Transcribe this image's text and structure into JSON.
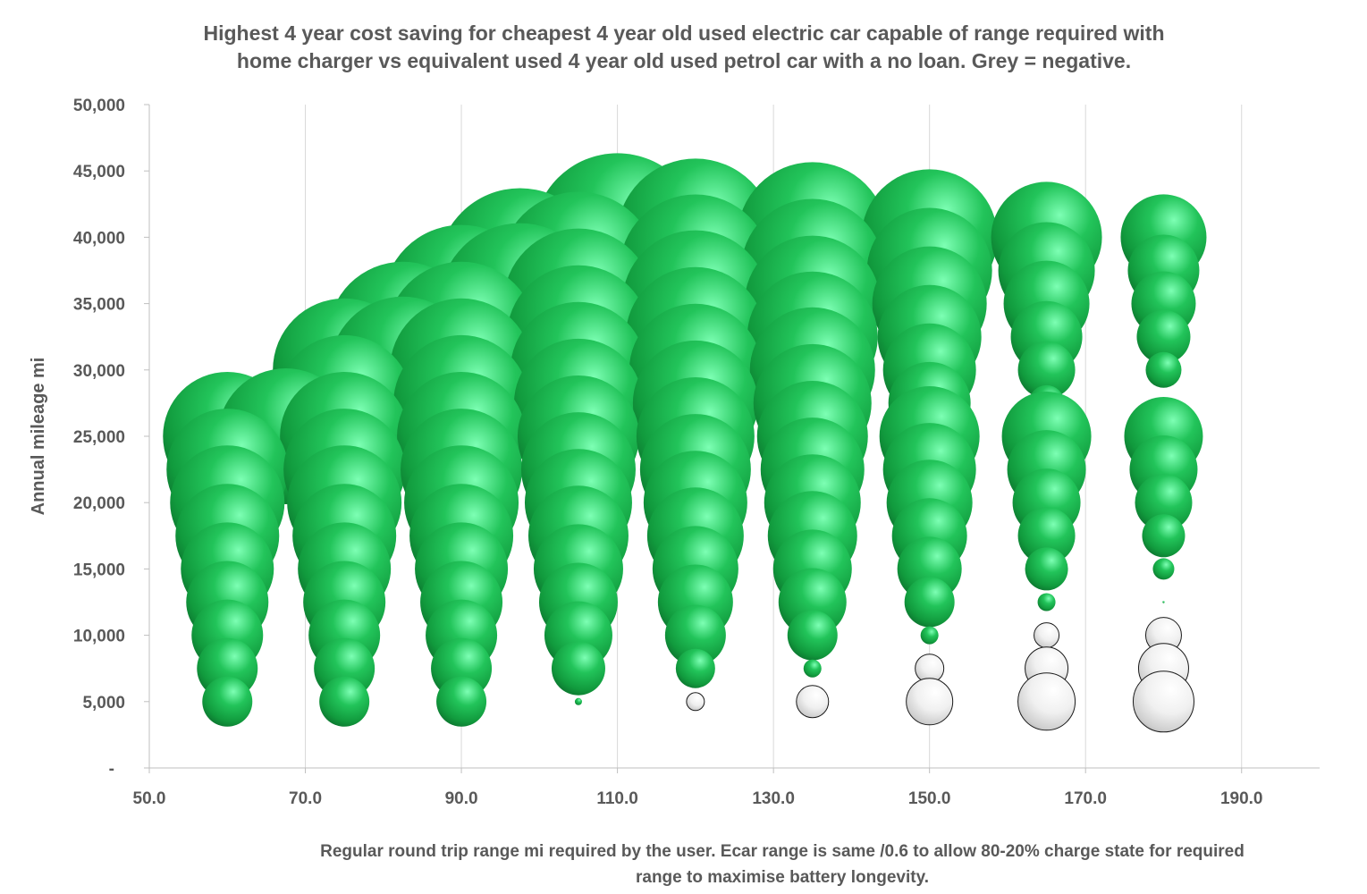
{
  "chart_data": {
    "type": "bubble",
    "title_line1": "Highest 4 year cost saving for cheapest 4 year old used electric car capable of range required with",
    "title_line2": "home charger vs equivalent used 4 year old used petrol car with a no loan. Grey = negative.",
    "xlabel_line1": "Regular round trip range mi required by the user.  Ecar range is same /0.6 to allow 80-20% charge state for required",
    "xlabel_line2": "range to maximise battery longevity.",
    "ylabel": "Annual mileage mi",
    "xlim": [
      50,
      200
    ],
    "ylim": [
      0,
      50000
    ],
    "x_ticks": [
      "50.0",
      "70.0",
      "90.0",
      "110.0",
      "130.0",
      "150.0",
      "170.0",
      "190.0"
    ],
    "y_ticks": [
      "-",
      "5,000",
      "10,000",
      "15,000",
      "20,000",
      "25,000",
      "30,000",
      "35,000",
      "40,000",
      "45,000",
      "50,000"
    ],
    "gridlines": "vertical",
    "colors": {
      "positive": "#1ea84a",
      "negative": "#e8e8e8",
      "text": "#595959",
      "grid": "#d9d9d9"
    },
    "series": [
      {
        "x": 60,
        "points": [
          {
            "y": 5000,
            "size": 28,
            "sign": "pos"
          },
          {
            "y": 7500,
            "size": 34,
            "sign": "pos"
          },
          {
            "y": 10000,
            "size": 40,
            "sign": "pos"
          },
          {
            "y": 12500,
            "size": 46,
            "sign": "pos"
          },
          {
            "y": 15000,
            "size": 52,
            "sign": "pos"
          },
          {
            "y": 17500,
            "size": 58,
            "sign": "pos"
          },
          {
            "y": 20000,
            "size": 64,
            "sign": "pos"
          },
          {
            "y": 22500,
            "size": 68,
            "sign": "pos"
          },
          {
            "y": 25000,
            "size": 72,
            "sign": "pos"
          }
        ]
      },
      {
        "x": 67.5,
        "points": [
          {
            "y": 25000,
            "size": 76,
            "sign": "pos"
          }
        ]
      },
      {
        "x": 75,
        "points": [
          {
            "y": 5000,
            "size": 28,
            "sign": "pos"
          },
          {
            "y": 7500,
            "size": 34,
            "sign": "pos"
          },
          {
            "y": 10000,
            "size": 40,
            "sign": "pos"
          },
          {
            "y": 12500,
            "size": 46,
            "sign": "pos"
          },
          {
            "y": 15000,
            "size": 52,
            "sign": "pos"
          },
          {
            "y": 17500,
            "size": 58,
            "sign": "pos"
          },
          {
            "y": 20000,
            "size": 64,
            "sign": "pos"
          },
          {
            "y": 22500,
            "size": 68,
            "sign": "pos"
          },
          {
            "y": 25000,
            "size": 72,
            "sign": "pos"
          },
          {
            "y": 27500,
            "size": 76,
            "sign": "pos"
          },
          {
            "y": 30000,
            "size": 80,
            "sign": "pos"
          }
        ]
      },
      {
        "x": 82.5,
        "points": [
          {
            "y": 30000,
            "size": 82,
            "sign": "pos"
          },
          {
            "y": 32500,
            "size": 84,
            "sign": "pos"
          }
        ]
      },
      {
        "x": 90,
        "points": [
          {
            "y": 5000,
            "size": 28,
            "sign": "pos"
          },
          {
            "y": 7500,
            "size": 34,
            "sign": "pos"
          },
          {
            "y": 10000,
            "size": 40,
            "sign": "pos"
          },
          {
            "y": 12500,
            "size": 46,
            "sign": "pos"
          },
          {
            "y": 15000,
            "size": 52,
            "sign": "pos"
          },
          {
            "y": 17500,
            "size": 58,
            "sign": "pos"
          },
          {
            "y": 20000,
            "size": 64,
            "sign": "pos"
          },
          {
            "y": 22500,
            "size": 68,
            "sign": "pos"
          },
          {
            "y": 25000,
            "size": 72,
            "sign": "pos"
          },
          {
            "y": 27500,
            "size": 76,
            "sign": "pos"
          },
          {
            "y": 30000,
            "size": 80,
            "sign": "pos"
          },
          {
            "y": 32500,
            "size": 84,
            "sign": "pos"
          },
          {
            "y": 35000,
            "size": 88,
            "sign": "pos"
          }
        ]
      },
      {
        "x": 97.5,
        "points": [
          {
            "y": 35000,
            "size": 90,
            "sign": "pos"
          },
          {
            "y": 37500,
            "size": 92,
            "sign": "pos"
          }
        ]
      },
      {
        "x": 105,
        "points": [
          {
            "y": 5000,
            "size": 4,
            "sign": "pos"
          },
          {
            "y": 7500,
            "size": 30,
            "sign": "pos"
          },
          {
            "y": 10000,
            "size": 38,
            "sign": "pos"
          },
          {
            "y": 12500,
            "size": 44,
            "sign": "pos"
          },
          {
            "y": 15000,
            "size": 50,
            "sign": "pos"
          },
          {
            "y": 17500,
            "size": 56,
            "sign": "pos"
          },
          {
            "y": 20000,
            "size": 60,
            "sign": "pos"
          },
          {
            "y": 22500,
            "size": 64,
            "sign": "pos"
          },
          {
            "y": 25000,
            "size": 68,
            "sign": "pos"
          },
          {
            "y": 27500,
            "size": 72,
            "sign": "pos"
          },
          {
            "y": 30000,
            "size": 76,
            "sign": "pos"
          },
          {
            "y": 32500,
            "size": 80,
            "sign": "pos"
          },
          {
            "y": 35000,
            "size": 84,
            "sign": "pos"
          },
          {
            "y": 37500,
            "size": 88,
            "sign": "pos"
          }
        ]
      },
      {
        "x": 110,
        "points": [
          {
            "y": 40000,
            "size": 94,
            "sign": "pos"
          }
        ]
      },
      {
        "x": 120,
        "points": [
          {
            "y": 5000,
            "size": 10,
            "sign": "neg"
          },
          {
            "y": 7500,
            "size": 22,
            "sign": "pos"
          },
          {
            "y": 10000,
            "size": 34,
            "sign": "pos"
          },
          {
            "y": 12500,
            "size": 42,
            "sign": "pos"
          },
          {
            "y": 15000,
            "size": 48,
            "sign": "pos"
          },
          {
            "y": 17500,
            "size": 54,
            "sign": "pos"
          },
          {
            "y": 20000,
            "size": 58,
            "sign": "pos"
          },
          {
            "y": 22500,
            "size": 62,
            "sign": "pos"
          },
          {
            "y": 25000,
            "size": 66,
            "sign": "pos"
          },
          {
            "y": 27500,
            "size": 70,
            "sign": "pos"
          },
          {
            "y": 30000,
            "size": 74,
            "sign": "pos"
          },
          {
            "y": 32500,
            "size": 78,
            "sign": "pos"
          },
          {
            "y": 35000,
            "size": 82,
            "sign": "pos"
          },
          {
            "y": 37500,
            "size": 85,
            "sign": "pos"
          },
          {
            "y": 40000,
            "size": 88,
            "sign": "pos"
          }
        ]
      },
      {
        "x": 135,
        "points": [
          {
            "y": 5000,
            "size": 18,
            "sign": "neg"
          },
          {
            "y": 7500,
            "size": 10,
            "sign": "pos"
          },
          {
            "y": 10000,
            "size": 28,
            "sign": "pos"
          },
          {
            "y": 12500,
            "size": 38,
            "sign": "pos"
          },
          {
            "y": 15000,
            "size": 44,
            "sign": "pos"
          },
          {
            "y": 17500,
            "size": 50,
            "sign": "pos"
          },
          {
            "y": 20000,
            "size": 54,
            "sign": "pos"
          },
          {
            "y": 22500,
            "size": 58,
            "sign": "pos"
          },
          {
            "y": 25000,
            "size": 62,
            "sign": "pos"
          },
          {
            "y": 27500,
            "size": 66,
            "sign": "pos"
          },
          {
            "y": 30000,
            "size": 70,
            "sign": "pos"
          },
          {
            "y": 32500,
            "size": 73,
            "sign": "pos"
          },
          {
            "y": 35000,
            "size": 76,
            "sign": "pos"
          },
          {
            "y": 37500,
            "size": 80,
            "sign": "pos"
          },
          {
            "y": 40000,
            "size": 84,
            "sign": "pos"
          }
        ]
      },
      {
        "x": 150,
        "points": [
          {
            "y": 5000,
            "size": 26,
            "sign": "neg"
          },
          {
            "y": 7500,
            "size": 16,
            "sign": "neg"
          },
          {
            "y": 10000,
            "size": 10,
            "sign": "pos"
          },
          {
            "y": 12500,
            "size": 28,
            "sign": "pos"
          },
          {
            "y": 15000,
            "size": 36,
            "sign": "pos"
          },
          {
            "y": 17500,
            "size": 42,
            "sign": "pos"
          },
          {
            "y": 20000,
            "size": 48,
            "sign": "pos"
          },
          {
            "y": 22500,
            "size": 52,
            "sign": "pos"
          },
          {
            "y": 25000,
            "size": 56,
            "sign": "pos"
          },
          {
            "y": 27500,
            "size": 46,
            "sign": "pos"
          },
          {
            "y": 30000,
            "size": 52,
            "sign": "pos"
          },
          {
            "y": 32500,
            "size": 58,
            "sign": "pos"
          },
          {
            "y": 35000,
            "size": 64,
            "sign": "pos"
          },
          {
            "y": 37500,
            "size": 70,
            "sign": "pos"
          },
          {
            "y": 40000,
            "size": 76,
            "sign": "pos"
          }
        ]
      },
      {
        "x": 165,
        "points": [
          {
            "y": 5000,
            "size": 32,
            "sign": "neg"
          },
          {
            "y": 7500,
            "size": 24,
            "sign": "neg"
          },
          {
            "y": 10000,
            "size": 14,
            "sign": "neg"
          },
          {
            "y": 12500,
            "size": 10,
            "sign": "pos"
          },
          {
            "y": 15000,
            "size": 24,
            "sign": "pos"
          },
          {
            "y": 17500,
            "size": 32,
            "sign": "pos"
          },
          {
            "y": 20000,
            "size": 38,
            "sign": "pos"
          },
          {
            "y": 22500,
            "size": 44,
            "sign": "pos"
          },
          {
            "y": 25000,
            "size": 50,
            "sign": "pos"
          },
          {
            "y": 27500,
            "size": 20,
            "sign": "pos"
          },
          {
            "y": 30000,
            "size": 32,
            "sign": "pos"
          },
          {
            "y": 32500,
            "size": 40,
            "sign": "pos"
          },
          {
            "y": 35000,
            "size": 48,
            "sign": "pos"
          },
          {
            "y": 37500,
            "size": 54,
            "sign": "pos"
          },
          {
            "y": 40000,
            "size": 62,
            "sign": "pos"
          }
        ]
      },
      {
        "x": 180,
        "points": [
          {
            "y": 5000,
            "size": 34,
            "sign": "neg"
          },
          {
            "y": 7500,
            "size": 28,
            "sign": "neg"
          },
          {
            "y": 10000,
            "size": 20,
            "sign": "neg"
          },
          {
            "y": 12500,
            "size": 1,
            "sign": "pos"
          },
          {
            "y": 15000,
            "size": 12,
            "sign": "pos"
          },
          {
            "y": 17500,
            "size": 24,
            "sign": "pos"
          },
          {
            "y": 20000,
            "size": 32,
            "sign": "pos"
          },
          {
            "y": 22500,
            "size": 38,
            "sign": "pos"
          },
          {
            "y": 25000,
            "size": 44,
            "sign": "pos"
          },
          {
            "y": 27500,
            "size": 4,
            "sign": "pos"
          },
          {
            "y": 30000,
            "size": 20,
            "sign": "pos"
          },
          {
            "y": 32500,
            "size": 30,
            "sign": "pos"
          },
          {
            "y": 35000,
            "size": 36,
            "sign": "pos"
          },
          {
            "y": 37500,
            "size": 40,
            "sign": "pos"
          },
          {
            "y": 40000,
            "size": 48,
            "sign": "pos"
          }
        ]
      }
    ]
  }
}
